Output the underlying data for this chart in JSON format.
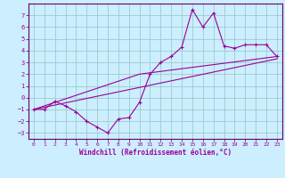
{
  "xlabel": "Windchill (Refroidissement éolien,°C)",
  "bg_color": "#cceeff",
  "grid_color": "#99cccc",
  "line_color": "#990099",
  "spine_color": "#660066",
  "xlim": [
    -0.5,
    23.5
  ],
  "ylim": [
    -3.5,
    8.0
  ],
  "yticks": [
    -3,
    -2,
    -1,
    0,
    1,
    2,
    3,
    4,
    5,
    6,
    7
  ],
  "xticks": [
    0,
    1,
    2,
    3,
    4,
    5,
    6,
    7,
    8,
    9,
    10,
    11,
    12,
    13,
    14,
    15,
    16,
    17,
    18,
    19,
    20,
    21,
    22,
    23
  ],
  "curve1_x": [
    0,
    1,
    2,
    3,
    4,
    5,
    6,
    7,
    8,
    9,
    10,
    11,
    12,
    13,
    14,
    15,
    16,
    17,
    18,
    19,
    20,
    21,
    22,
    23
  ],
  "curve1_y": [
    -1.0,
    -1.0,
    -0.3,
    -0.7,
    -1.2,
    -2.0,
    -2.5,
    -3.0,
    -1.8,
    -1.7,
    -0.4,
    2.0,
    3.0,
    3.5,
    4.3,
    7.5,
    6.0,
    7.2,
    4.4,
    4.2,
    4.5,
    4.5,
    4.5,
    3.5
  ],
  "line2_x": [
    0,
    23
  ],
  "line2_y": [
    -1.0,
    3.3
  ],
  "line3_x": [
    0,
    10,
    23
  ],
  "line3_y": [
    -1.0,
    2.0,
    3.5
  ]
}
